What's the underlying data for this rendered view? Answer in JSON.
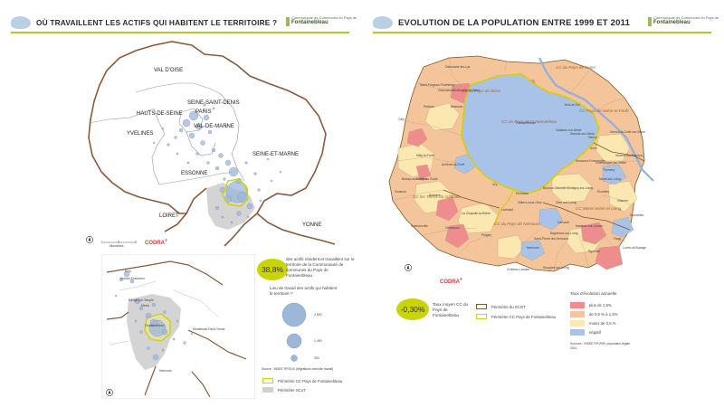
{
  "left_panel": {
    "title": "OÙ TRAVAILLENT LES ACTIFS QUI HABITENT LE TERRITOIRE ?",
    "logo": {
      "line1": "Communauté de Communes du Pays de",
      "line2": "",
      "name": "Fontainebleau"
    },
    "regions": [
      "VAL D'OISE",
      "HAUTS-DE-SEINE",
      "PARIS",
      "SEINE-SAINT-DENIS",
      "YVELINES",
      "VAL-DE-MARNE",
      "SEINE-ET-MARNE",
      "ESSONNE",
      "LOIRET",
      "YONNE"
    ],
    "codra": "CODRA",
    "scale_label": "kilomètres",
    "inset_labels": [
      "Évry",
      "Corbeil-Essonnes",
      "Savigny-le-Temple",
      "Melun",
      "Fontainebleau",
      "Montereau-Fault-Yonne",
      "Nemours"
    ],
    "stat_value": "38,8%",
    "stat_text": "des actifs résident et travaillent sur le territoire de la Communauté de communes du Pays de Fontainebleau",
    "legend_title": "Lieu de travail des actifs qui habitent le territoire ?",
    "bubble_values": [
      "2 800",
      "1 400",
      "300"
    ],
    "source": "Source : INSEE RP2010 (Migrations domicile travail)",
    "legend_items": [
      "Périmètre CC Pays de Fontainebleau",
      "Périmètre SCoT"
    ],
    "colors": {
      "bubble": "#9db7d8",
      "ccpf": "#d4d000",
      "scot": "#cfcfcf"
    }
  },
  "right_panel": {
    "title": "EVOLUTION DE LA POPULATION ENTRE 1999 ET 2011",
    "logo": {
      "line1": "Communauté de Communes du Pays de",
      "line2": "",
      "name": "Fontainebleau"
    },
    "cc_labels": [
      "CC du Pays de Seine",
      "CC du Pays de Bière",
      "CC du Pays de Fontainebleau",
      "CC Moret Seine et Loing",
      "CC du Pays de Nemours",
      "CC les Terres du Gâtinais",
      "CC Pays de Seine et Forêt"
    ],
    "communes": [
      "Fontainebleau",
      "Avon",
      "Barbizon",
      "Chailly-en-Bière",
      "Bois-le-Roi",
      "Samois-sur-Seine",
      "Héricy",
      "Moret-sur-Loing",
      "Ury",
      "Recloses",
      "Bourron-Marlotte",
      "Nemours",
      "Larchant",
      "Milly-la-Forêt",
      "Achères-la-Forêt",
      "Noisy-sur-École",
      "Villiers-sous-Grez",
      "Montigny-sur-Loing",
      "Grez-sur-Loing",
      "Vulaines-sur-Seine",
      "Champagne-sur-Seine",
      "Saint-Pierre-lès-Nemours",
      "Thomery",
      "Souppes-sur-Loing",
      "Château-Landon",
      "La Chapelle-la-Reine",
      "Saint-Fargeau-Ponthierry",
      "Dammarie-les-Lys",
      "Perthes",
      "Cély",
      "Veneux-les-Sablons",
      "Vernou-la-Celle-sur-Seine",
      "Écuelles",
      "Villemer",
      "Dormelles",
      "Flagy",
      "Lorrez-le-Bocage",
      "Égreville",
      "Chevrainvilliers",
      "Boissy-aux-Cailles",
      "Tousson",
      "Buthiers",
      "Guercheville",
      "Nanteau-sur-Lunain",
      "Darvault",
      "Bagneaux-sur-Loing",
      "Poligny",
      "Ormesson",
      "Moncourt-Fromonville"
    ],
    "codra": "CODRA",
    "stat_value": "-0,30%",
    "stat_text": "Taux moyen CC du Pays de Fontainebleau",
    "perimeter_legend": [
      "Périmètre du SCOT",
      "Périmètre CC Pays de Fontainebleau"
    ],
    "rate_legend_title": "Taux d'évolution annuelle",
    "rate_legend": [
      {
        "label": "plus de 1,5%",
        "color": "#ee8c8e"
      },
      {
        "label": "de 0,5 % à 1,5%",
        "color": "#f4c49a"
      },
      {
        "label": "moins de 0,5 %",
        "color": "#fbe8b0"
      },
      {
        "label": "négatif",
        "color": "#a9c3e8"
      }
    ],
    "source": "Sources : INSEE RP1999, population légale 2011",
    "colors": {
      "scot_border": "#7a5a2a",
      "ccpf_border": "#d4d000",
      "seine": "#8fb0e0"
    }
  }
}
